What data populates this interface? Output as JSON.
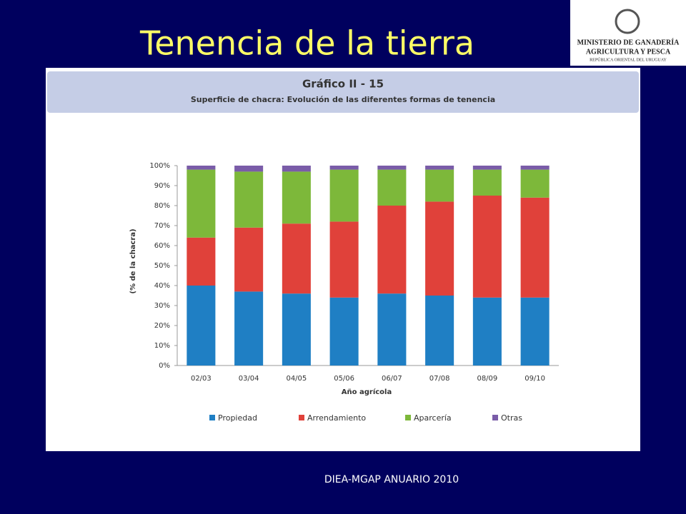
{
  "slide": {
    "title": "Tenencia de la tierra",
    "footer": "DIEA-MGAP ANUARIO 2010",
    "logo": [
      "MINISTERIO DE GANADERÍA",
      "AGRICULTURA Y PESCA",
      "REPÚBLICA ORIENTAL DEL URUGUAY"
    ]
  },
  "chart_data": {
    "type": "stacked_bar",
    "title": "Gráfico II - 15",
    "subtitle": "Superficie de chacra: Evolución de las diferentes formas de tenencia",
    "xlabel": "Año agrícola",
    "ylabel": "(% de la chacra)",
    "categories": [
      "02/03",
      "03/04",
      "04/05",
      "05/06",
      "06/07",
      "07/08",
      "08/09",
      "09/10"
    ],
    "series": [
      {
        "name": "Propiedad",
        "color": "#1f7fc4",
        "values": [
          40,
          37,
          36,
          34,
          36,
          35,
          34,
          34
        ]
      },
      {
        "name": "Arrendamiento",
        "color": "#e0413a",
        "values": [
          24,
          32,
          35,
          38,
          44,
          47,
          51,
          50
        ]
      },
      {
        "name": "Aparcería",
        "color": "#7db83a",
        "values": [
          34,
          28,
          26,
          26,
          18,
          16,
          13,
          14
        ]
      },
      {
        "name": "Otras",
        "color": "#7a5ca8",
        "values": [
          2,
          3,
          3,
          2,
          2,
          2,
          2,
          2
        ]
      }
    ],
    "ylim": [
      0,
      100
    ],
    "yticks": [
      {
        "value": 0,
        "label": "0%"
      },
      {
        "value": 10,
        "label": "10%"
      },
      {
        "value": 20,
        "label": "20%"
      },
      {
        "value": 30,
        "label": "30%"
      },
      {
        "value": 40,
        "label": "40%"
      },
      {
        "value": 50,
        "label": "50%"
      },
      {
        "value": 60,
        "label": "60%"
      },
      {
        "value": 70,
        "label": "70%"
      },
      {
        "value": 80,
        "label": "80%"
      },
      {
        "value": 90,
        "label": "90%"
      },
      {
        "value": 100,
        "label": "100%"
      }
    ],
    "legend": "bottom"
  }
}
